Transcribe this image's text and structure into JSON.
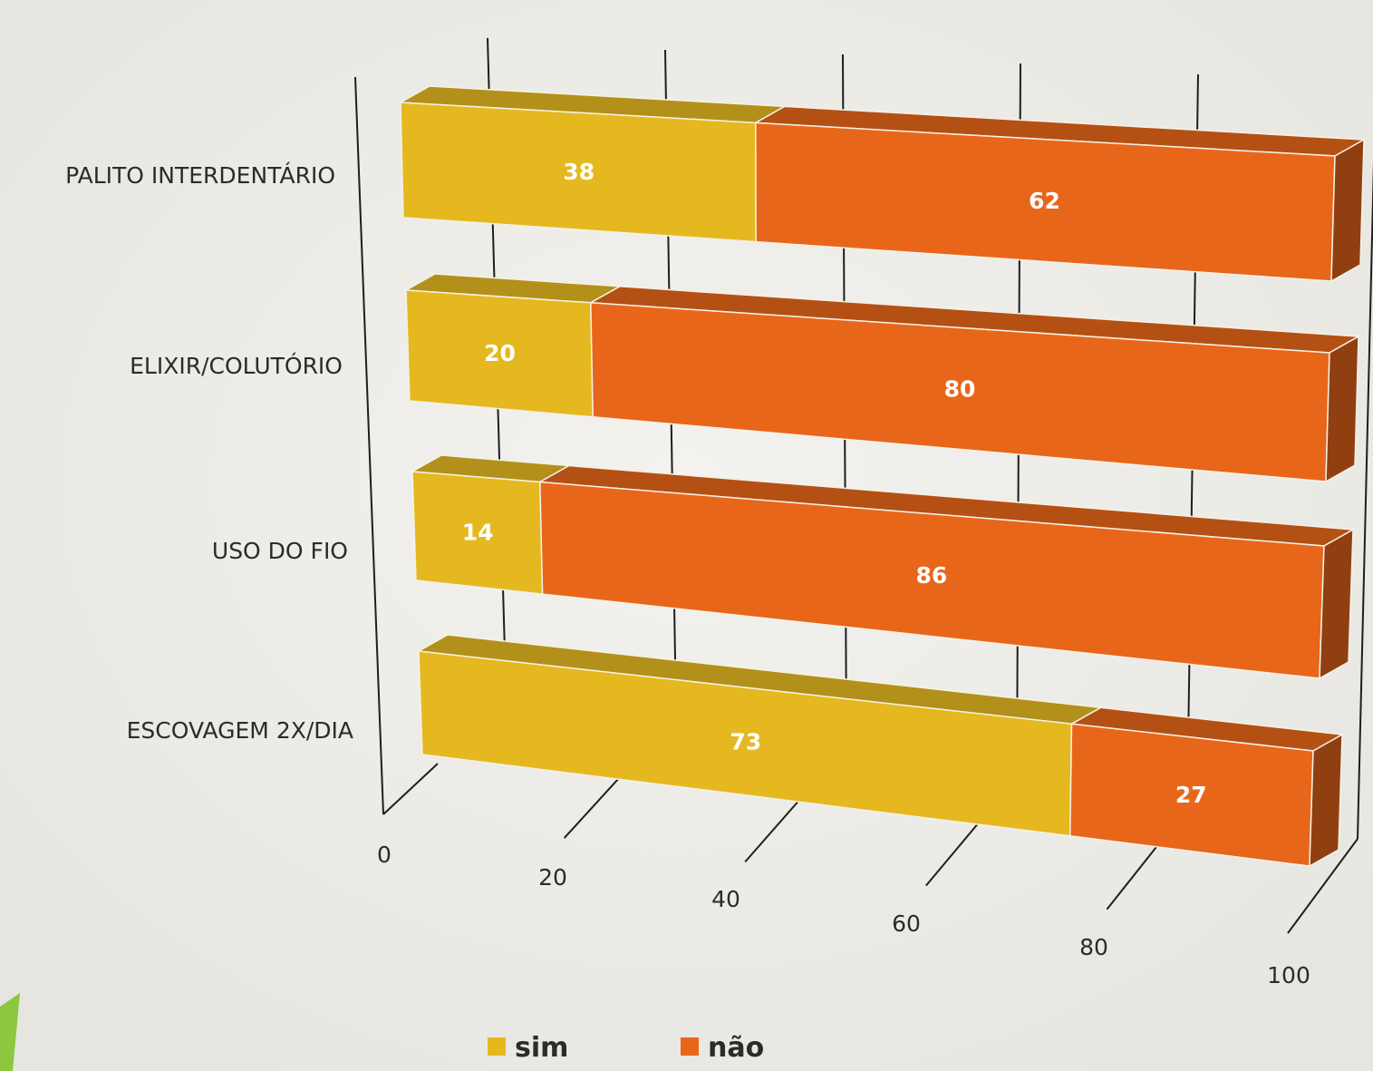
{
  "chart_data": {
    "type": "bar",
    "orientation": "horizontal",
    "stacked": true,
    "style": "3d",
    "categories": [
      "PALITO INTERDENTÁRIO",
      "ELIXIR/COLUTÓRIO",
      "USO DO FIO",
      "ESCOVAGEM 2X/DIA"
    ],
    "series": [
      {
        "name": "sim",
        "values": [
          38,
          20,
          14,
          73
        ],
        "color": "#e5b820"
      },
      {
        "name": "não",
        "values": [
          62,
          80,
          86,
          27
        ],
        "color": "#e8661a"
      }
    ],
    "x_ticks": [
      "0",
      "20",
      "40",
      "60",
      "80",
      "100"
    ],
    "xlim": [
      0,
      100
    ],
    "grid": true,
    "legend_position": "bottom",
    "title": "",
    "xlabel": "",
    "ylabel": ""
  }
}
